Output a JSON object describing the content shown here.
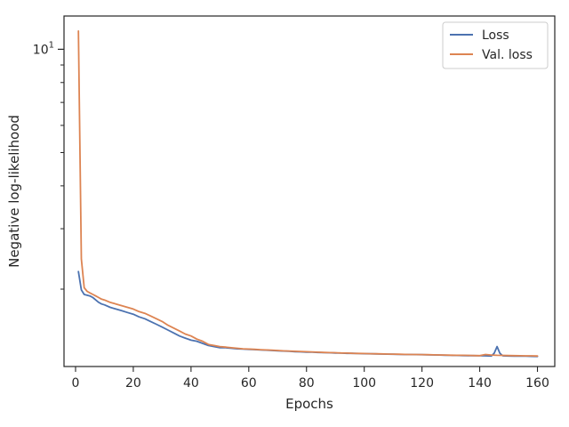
{
  "chart_data": {
    "type": "line",
    "title": "",
    "xlabel": "Epochs",
    "ylabel": "Negative log-likelihood",
    "xlim": [
      -4,
      166
    ],
    "ylim": [
      1.19,
      12.5
    ],
    "yscale": "log",
    "xticks": [
      0,
      20,
      40,
      60,
      80,
      100,
      120,
      140,
      160
    ],
    "xtick_labels": [
      "0",
      "20",
      "40",
      "60",
      "80",
      "100",
      "120",
      "140",
      "160"
    ],
    "yticks_major": [
      10
    ],
    "ytick_major_labels": [
      "10^1"
    ],
    "yticks_minor": [
      2,
      3,
      4,
      5,
      6,
      7,
      8,
      9
    ],
    "grid": false,
    "legend_position": "top-right",
    "series": [
      {
        "name": "Loss",
        "color": "#4c72b0",
        "x": [
          1,
          2,
          3,
          4,
          5,
          6,
          7,
          8,
          9,
          10,
          12,
          14,
          16,
          18,
          20,
          22,
          24,
          26,
          28,
          30,
          32,
          34,
          36,
          38,
          40,
          42,
          44,
          46,
          48,
          50,
          52,
          54,
          56,
          58,
          60,
          62,
          64,
          66,
          68,
          70,
          72,
          74,
          76,
          78,
          80,
          82,
          84,
          86,
          88,
          90,
          92,
          94,
          96,
          98,
          100,
          102,
          104,
          106,
          108,
          110,
          112,
          114,
          116,
          118,
          120,
          122,
          124,
          126,
          128,
          130,
          132,
          134,
          136,
          138,
          140,
          142,
          144,
          145,
          146,
          147,
          148,
          150,
          152,
          154,
          156,
          158,
          160
        ],
        "values": [
          2.25,
          1.99,
          1.93,
          1.92,
          1.91,
          1.89,
          1.86,
          1.83,
          1.81,
          1.8,
          1.77,
          1.75,
          1.73,
          1.71,
          1.69,
          1.66,
          1.64,
          1.61,
          1.58,
          1.55,
          1.52,
          1.49,
          1.46,
          1.44,
          1.42,
          1.41,
          1.39,
          1.37,
          1.36,
          1.35,
          1.35,
          1.345,
          1.34,
          1.338,
          1.335,
          1.333,
          1.33,
          1.328,
          1.325,
          1.323,
          1.32,
          1.318,
          1.315,
          1.313,
          1.31,
          1.31,
          1.308,
          1.306,
          1.305,
          1.303,
          1.302,
          1.3,
          1.3,
          1.298,
          1.297,
          1.296,
          1.295,
          1.294,
          1.293,
          1.292,
          1.291,
          1.29,
          1.29,
          1.289,
          1.288,
          1.287,
          1.286,
          1.285,
          1.284,
          1.283,
          1.282,
          1.281,
          1.28,
          1.28,
          1.279,
          1.278,
          1.277,
          1.3,
          1.36,
          1.3,
          1.278,
          1.277,
          1.276,
          1.275,
          1.275,
          1.274,
          1.273
        ]
      },
      {
        "name": "Val. loss",
        "color": "#dd8452",
        "x": [
          1,
          2,
          3,
          4,
          5,
          6,
          7,
          8,
          9,
          10,
          12,
          14,
          16,
          18,
          20,
          22,
          24,
          26,
          28,
          30,
          32,
          34,
          36,
          38,
          40,
          42,
          44,
          46,
          48,
          50,
          52,
          54,
          56,
          58,
          60,
          62,
          64,
          66,
          68,
          70,
          72,
          74,
          76,
          78,
          80,
          82,
          84,
          86,
          88,
          90,
          92,
          94,
          96,
          98,
          100,
          102,
          104,
          106,
          108,
          110,
          112,
          114,
          116,
          118,
          120,
          122,
          124,
          126,
          128,
          130,
          132,
          134,
          136,
          138,
          140,
          142,
          144,
          146,
          148,
          150,
          152,
          154,
          156,
          158,
          160
        ],
        "values": [
          11.3,
          2.45,
          2.02,
          1.97,
          1.95,
          1.93,
          1.91,
          1.89,
          1.87,
          1.86,
          1.83,
          1.81,
          1.79,
          1.77,
          1.75,
          1.72,
          1.7,
          1.67,
          1.64,
          1.61,
          1.57,
          1.54,
          1.51,
          1.48,
          1.46,
          1.43,
          1.41,
          1.38,
          1.37,
          1.36,
          1.355,
          1.35,
          1.345,
          1.34,
          1.338,
          1.335,
          1.332,
          1.33,
          1.328,
          1.325,
          1.322,
          1.32,
          1.318,
          1.316,
          1.314,
          1.312,
          1.31,
          1.308,
          1.306,
          1.305,
          1.303,
          1.302,
          1.3,
          1.299,
          1.298,
          1.297,
          1.296,
          1.295,
          1.294,
          1.293,
          1.292,
          1.291,
          1.29,
          1.29,
          1.289,
          1.288,
          1.287,
          1.286,
          1.285,
          1.284,
          1.283,
          1.283,
          1.282,
          1.281,
          1.28,
          1.29,
          1.285,
          1.283,
          1.282,
          1.281,
          1.28,
          1.279,
          1.278,
          1.278,
          1.277
        ]
      }
    ]
  }
}
